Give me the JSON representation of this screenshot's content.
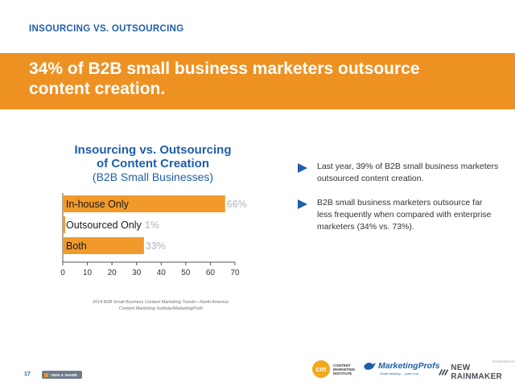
{
  "header": {
    "section_label": "INSOURCING VS. OUTSOURCING",
    "headline": "34% of B2B small business marketers outsource content creation."
  },
  "chart_data": {
    "type": "bar",
    "orientation": "horizontal",
    "title_line1": "Insourcing vs. Outsourcing",
    "title_line2": "of Content Creation",
    "subtitle": "(B2B Small Businesses)",
    "categories": [
      "In-house Only",
      "Outsourced Only",
      "Both"
    ],
    "values": [
      66,
      1,
      33
    ],
    "value_labels": [
      "66%",
      "1%",
      "33%"
    ],
    "xlim": [
      0,
      70
    ],
    "ticks": [
      "0",
      "10",
      "20",
      "30",
      "40",
      "50",
      "60",
      "70"
    ],
    "bar_color": "#f19a2b",
    "value_label_color": "#c8c8c8",
    "source_line1": "2014 B2B Small Business Content Marketing Trends—North America:",
    "source_line2": "Content Marketing Institute/MarketingProfs"
  },
  "bullets": [
    "Last year, 39% of B2B small business marketers outsourced content creation.",
    "B2B small business marketers outsource far less frequently when compared with enterprise marketers (34% vs. 73%)."
  ],
  "footer": {
    "page_number": "17",
    "view_share": "VIEW & SHARE",
    "cmi_mark": "cm",
    "cmi_text": "CONTENT MARKETING INSTITUTE",
    "mp_name": "MarketingProfs",
    "mp_tagline": "Smart thinking ... pass it on.",
    "sponsored_by": "SPONSORED BY",
    "new_rainmaker": "NEW RAINMAKER",
    "icon_triangle": "play-triangle-icon",
    "icon_bird": "bird-icon",
    "icon_chevrons": "chevrons-icon"
  },
  "colors": {
    "banner": "#ee9123",
    "accent_blue": "#1f5ea8"
  }
}
